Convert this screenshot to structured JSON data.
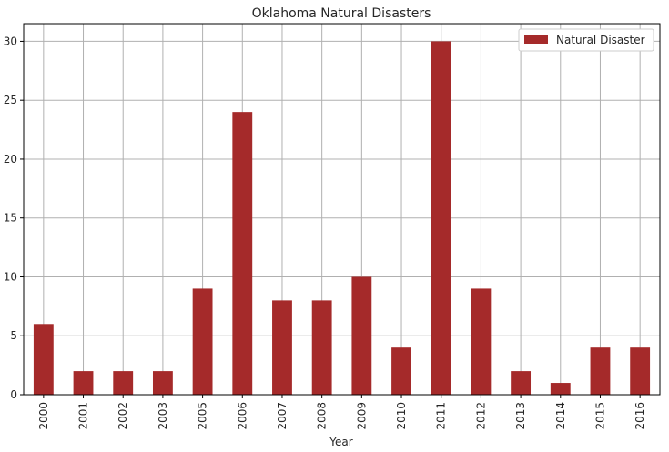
{
  "chart_data": {
    "type": "bar",
    "title": "Oklahoma Natural Disasters",
    "xlabel": "Year",
    "ylabel": "",
    "categories": [
      "2000",
      "2001",
      "2002",
      "2003",
      "2005",
      "2006",
      "2007",
      "2008",
      "2009",
      "2010",
      "2011",
      "2012",
      "2013",
      "2014",
      "2015",
      "2016"
    ],
    "series": [
      {
        "name": "Natural Disaster",
        "values": [
          6,
          2,
          2,
          2,
          9,
          24,
          8,
          8,
          10,
          4,
          30,
          9,
          2,
          1,
          4,
          4
        ]
      }
    ],
    "ylim": [
      0,
      31.5
    ],
    "yticks": [
      0,
      5,
      10,
      15,
      20,
      25,
      30
    ],
    "grid": true,
    "legend_position": "top-right",
    "colors": {
      "bar": "#a52a2a",
      "grid": "#b0b0b0",
      "axis": "#000000"
    }
  }
}
